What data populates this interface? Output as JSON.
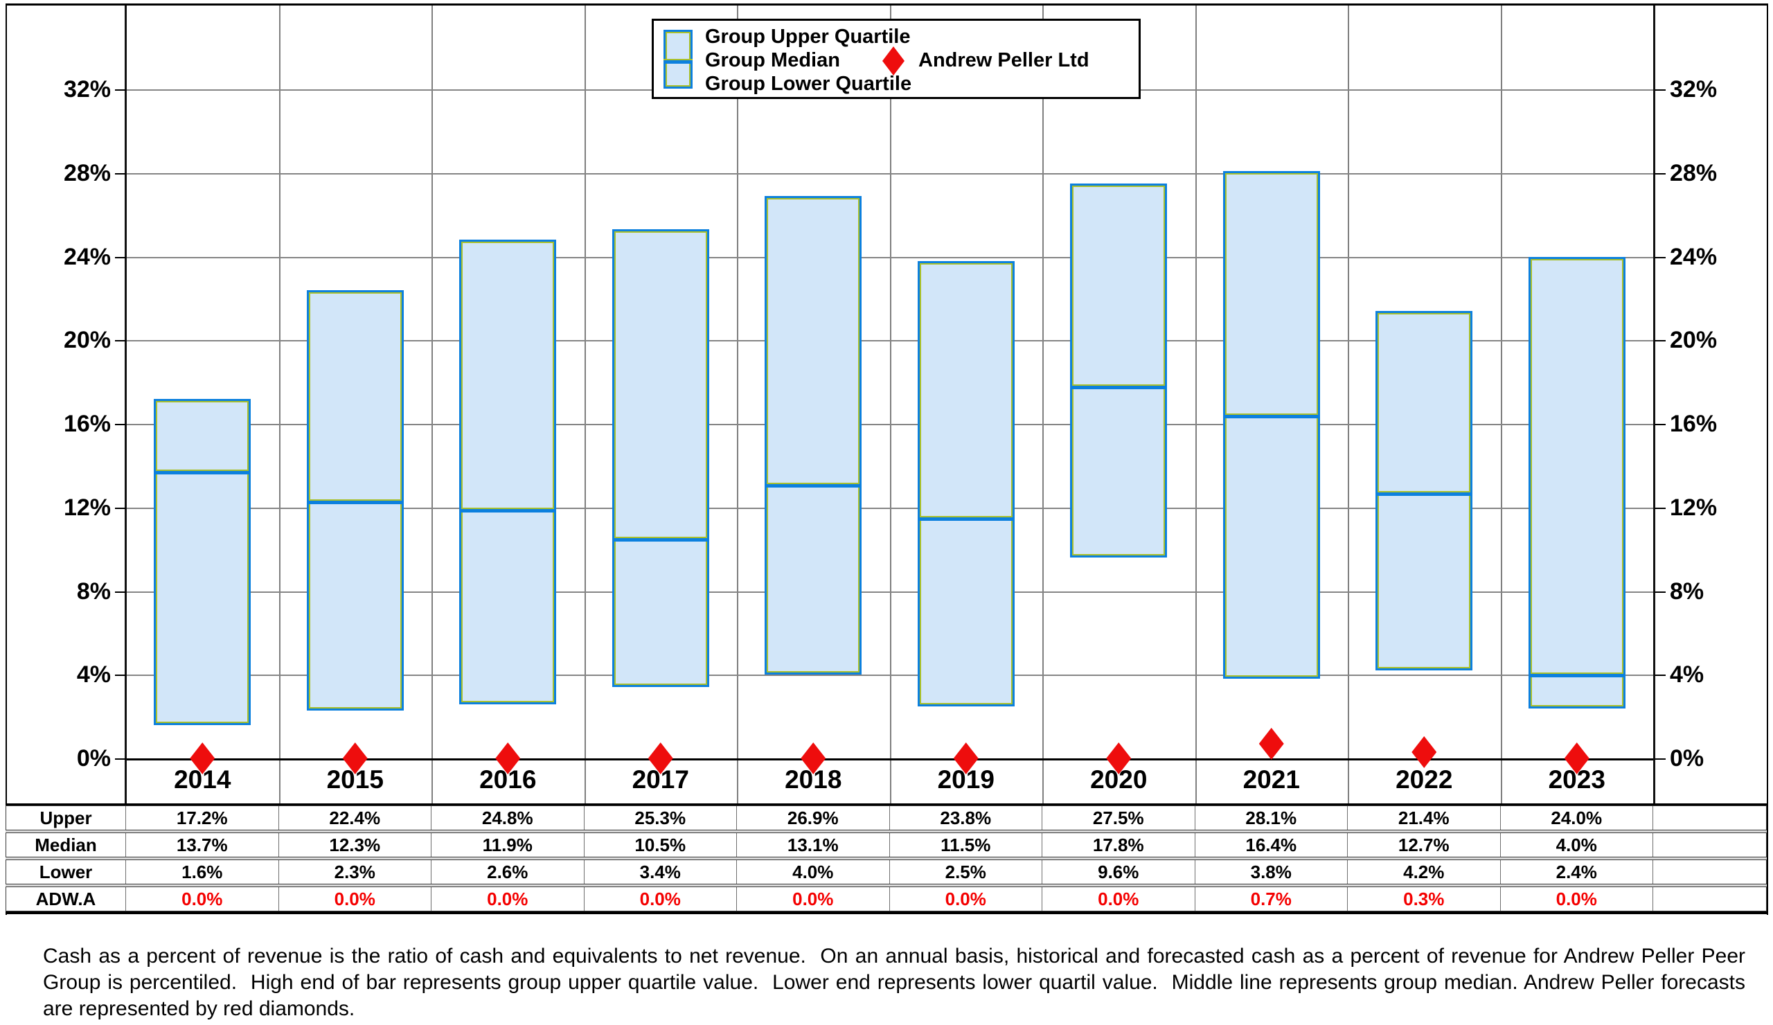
{
  "legend": {
    "upper_label": "Group Upper Quartile",
    "median_label": "Group Median",
    "lower_label": "Group Lower Quartile",
    "series_label": "Andrew Peller Ltd"
  },
  "chart_data": {
    "type": "bar",
    "subtype": "floating-quartile-range-with-scatter",
    "categories": [
      "2014",
      "2015",
      "2016",
      "2017",
      "2018",
      "2019",
      "2020",
      "2021",
      "2022",
      "2023"
    ],
    "series": [
      {
        "name": "Group Upper Quartile",
        "values": [
          17.2,
          22.4,
          24.8,
          25.3,
          26.9,
          23.8,
          27.5,
          28.1,
          21.4,
          24.0
        ]
      },
      {
        "name": "Group Median",
        "values": [
          13.7,
          12.3,
          11.9,
          10.5,
          13.1,
          11.5,
          17.8,
          16.4,
          12.7,
          4.0
        ]
      },
      {
        "name": "Group Lower Quartile",
        "values": [
          1.6,
          2.3,
          2.6,
          3.4,
          4.0,
          2.5,
          9.6,
          3.8,
          4.2,
          2.4
        ]
      },
      {
        "name": "Andrew Peller Ltd",
        "values": [
          0.0,
          0.0,
          0.0,
          0.0,
          0.0,
          0.0,
          0.0,
          0.7,
          0.3,
          0.0
        ]
      }
    ],
    "title": "",
    "xlabel": "",
    "ylabel": "",
    "ylim": [
      0,
      36
    ],
    "yticks": [
      0,
      4,
      8,
      12,
      16,
      20,
      24,
      28,
      32
    ],
    "ytick_suffix": "%",
    "grid": true,
    "legend_position": "top-center",
    "dual_y_axis_labels": true
  },
  "table": {
    "rows": [
      {
        "label": "Upper",
        "red": false,
        "values": [
          "17.2%",
          "22.4%",
          "24.8%",
          "25.3%",
          "26.9%",
          "23.8%",
          "27.5%",
          "28.1%",
          "21.4%",
          "24.0%"
        ]
      },
      {
        "label": "Median",
        "red": false,
        "values": [
          "13.7%",
          "12.3%",
          "11.9%",
          "10.5%",
          "13.1%",
          "11.5%",
          "17.8%",
          "16.4%",
          "12.7%",
          "4.0%"
        ]
      },
      {
        "label": "Lower",
        "red": false,
        "values": [
          "1.6%",
          "2.3%",
          "2.6%",
          "3.4%",
          "4.0%",
          "2.5%",
          "9.6%",
          "3.8%",
          "4.2%",
          "2.4%"
        ]
      },
      {
        "label": "ADW.A",
        "red": true,
        "values": [
          "0.0%",
          "0.0%",
          "0.0%",
          "0.0%",
          "0.0%",
          "0.0%",
          "0.0%",
          "0.7%",
          "0.3%",
          "0.0%"
        ]
      }
    ]
  },
  "caption": "Cash as a percent of revenue is the ratio of cash and equivalents to net revenue.  On an annual basis, historical and forecasted cash as a percent of revenue for Andrew Peller Peer Group is percentiled.  High end of bar represents group upper quartile value.  Lower end represents lower quartil value.  Middle line represents group median. Andrew Peller forecasts are represented by red diamonds.",
  "colors": {
    "bar_fill": "#d2e6f9",
    "bar_border": "#0c80de",
    "bar_inner_edge": "#a9c02b",
    "diamond_red": "#ee0d0d",
    "table_value_red": "#f40000",
    "gridline": "#808080"
  }
}
